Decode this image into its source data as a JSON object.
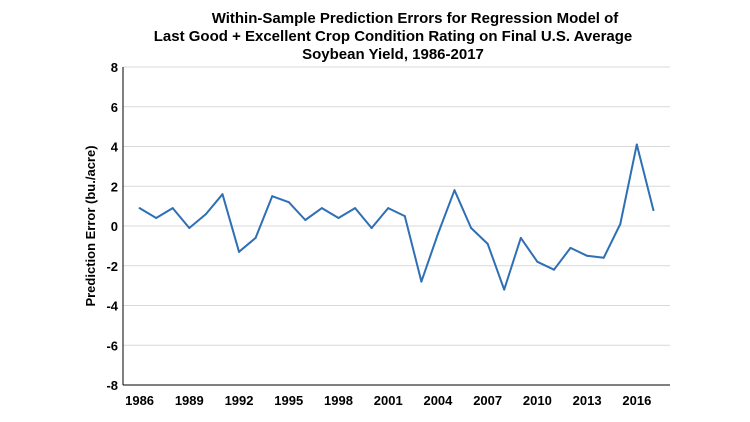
{
  "chart_data": {
    "type": "line",
    "title_lines": [
      "Within-Sample Prediction Errors for Regression Model of",
      "Last Good + Excellent Crop Condition Rating on Final U.S. Average",
      "Soybean Yield, 1986-2017"
    ],
    "xlabel": "",
    "ylabel": "Prediction Error (bu./acre)",
    "ylim": [
      -8,
      8
    ],
    "yticks": [
      "8",
      "6",
      "4",
      "2",
      "0",
      "-2",
      "-4",
      "-6",
      "-8"
    ],
    "xticks": [
      "1986",
      "1989",
      "1992",
      "1995",
      "1998",
      "2001",
      "2004",
      "2007",
      "2010",
      "2013",
      "2016"
    ],
    "grid": true,
    "line_color": "#2e6fb5",
    "series": [
      {
        "x": [
          1986,
          1987,
          1988,
          1989,
          1990,
          1991,
          1992,
          1993,
          1994,
          1995,
          1996,
          1997,
          1998,
          1999,
          2000,
          2001,
          2002,
          2003,
          2004,
          2005,
          2006,
          2007,
          2008,
          2009,
          2010,
          2011,
          2012,
          2013,
          2014,
          2015,
          2016,
          2017
        ],
        "values": [
          0.9,
          0.4,
          0.9,
          -0.1,
          0.6,
          1.6,
          -1.3,
          -0.6,
          1.5,
          1.2,
          0.3,
          0.9,
          0.4,
          0.9,
          -0.1,
          0.9,
          0.5,
          -2.8,
          -0.4,
          1.8,
          -0.1,
          -0.9,
          -3.2,
          -0.6,
          -1.8,
          -2.2,
          -1.1,
          -1.5,
          -1.6,
          0.1,
          4.1,
          0.8
        ]
      }
    ]
  }
}
